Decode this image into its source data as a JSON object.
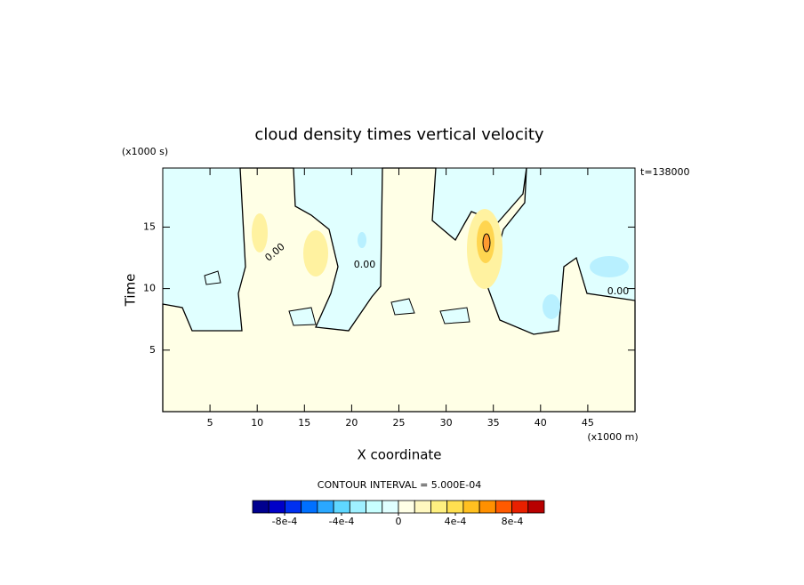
{
  "chart_data": {
    "type": "contour",
    "title": "cloud density times vertical velocity",
    "x_label": "X coordinate",
    "x_unit": "(x1000 m)",
    "y_label": "Time",
    "y_unit": "(x1000 s)",
    "time_note": "t=138000",
    "contour_label": "0.00",
    "contour_interval": "CONTOUR INTERVAL = 5.000E-04",
    "xlim": [
      0,
      50
    ],
    "xticks": [
      5,
      10,
      15,
      20,
      25,
      30,
      35,
      40,
      45
    ],
    "ylim": [
      0,
      19.8
    ],
    "yticks": [
      5,
      10,
      15
    ],
    "clim": [
      -0.001025,
      0.001025
    ],
    "cticks": [
      {
        "value": -0.0008,
        "label": "-8e-4"
      },
      {
        "value": -0.0004,
        "label": "-4e-4"
      },
      {
        "value": 0,
        "label": "0"
      },
      {
        "value": 0.0004,
        "label": "4e-4"
      },
      {
        "value": 0.0008,
        "label": "8e-4"
      }
    ],
    "colors": [
      "#00008f",
      "#0000c8",
      "#0030f0",
      "#0070ff",
      "#2aa8ff",
      "#5fd7ff",
      "#9ff0ff",
      "#c8ffff",
      "#e0ffff",
      "#ffffe6",
      "#fff8c0",
      "#fff080",
      "#ffe050",
      "#ffc020",
      "#ff9000",
      "#ff5a00",
      "#e82000",
      "#b80000"
    ]
  }
}
